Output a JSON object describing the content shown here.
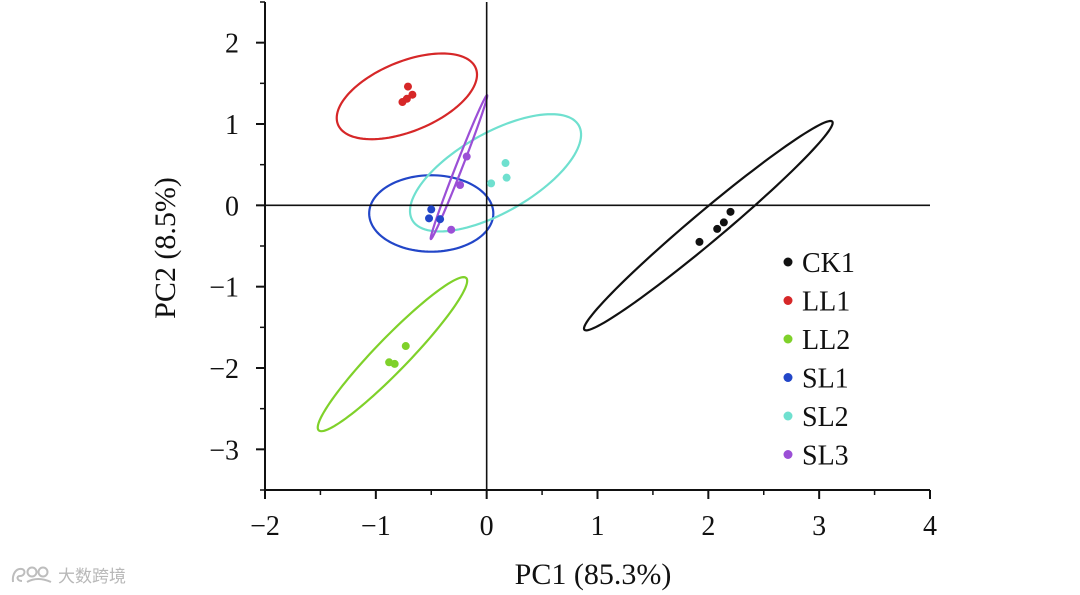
{
  "chart_data": {
    "type": "scatter",
    "xlabel": "PC1 (85.3%)",
    "ylabel": "PC2 (8.5%)",
    "xlim": [
      -2,
      4
    ],
    "ylim": [
      -3.5,
      2.5
    ],
    "xticks": [
      -2,
      -1,
      0,
      1,
      2,
      3,
      4
    ],
    "yticks": [
      -3,
      -2,
      -1,
      0,
      1,
      2
    ],
    "xtick_labels": [
      "−2",
      "−1",
      "0",
      "1",
      "2",
      "3",
      "4"
    ],
    "ytick_labels": [
      "−3",
      "−2",
      "−1",
      "0",
      "1",
      "2"
    ],
    "grid": false,
    "zero_lines": true,
    "legend_position": "bottom-right",
    "series": [
      {
        "name": "CK1",
        "color": "#111111",
        "points": [
          [
            1.92,
            -0.45
          ],
          [
            2.08,
            -0.29
          ],
          [
            2.14,
            -0.21
          ],
          [
            2.2,
            -0.08
          ]
        ],
        "ellipse": {
          "cx": 2.0,
          "cy": -0.25,
          "semi_major": 1.7,
          "semi_minor": 0.16,
          "angle_deg": 49
        }
      },
      {
        "name": "LL1",
        "color": "#d62728",
        "points": [
          [
            -0.76,
            1.27
          ],
          [
            -0.72,
            1.31
          ],
          [
            -0.67,
            1.36
          ],
          [
            -0.71,
            1.46
          ]
        ],
        "ellipse": {
          "cx": -0.72,
          "cy": 1.34,
          "semi_major": 0.72,
          "semi_minor": 0.4,
          "angle_deg": 35
        }
      },
      {
        "name": "LL2",
        "color": "#7fd12a",
        "points": [
          [
            -0.88,
            -1.93
          ],
          [
            -0.83,
            -1.95
          ],
          [
            -0.73,
            -1.73
          ]
        ],
        "ellipse": {
          "cx": -0.85,
          "cy": -1.83,
          "semi_major": 1.15,
          "semi_minor": 0.17,
          "angle_deg": 55
        }
      },
      {
        "name": "SL1",
        "color": "#2246c8",
        "points": [
          [
            -0.52,
            -0.16
          ],
          [
            -0.5,
            -0.05
          ],
          [
            -0.42,
            -0.17
          ]
        ],
        "ellipse": {
          "cx": -0.5,
          "cy": -0.1,
          "semi_major": 0.56,
          "semi_minor": 0.47,
          "angle_deg": 0
        }
      },
      {
        "name": "SL2",
        "color": "#6fe0cf",
        "points": [
          [
            0.04,
            0.27
          ],
          [
            0.17,
            0.52
          ],
          [
            0.18,
            0.34
          ]
        ],
        "ellipse": {
          "cx": 0.08,
          "cy": 0.4,
          "semi_major": 0.96,
          "semi_minor": 0.44,
          "angle_deg": 42
        }
      },
      {
        "name": "SL3",
        "color": "#9b4fd6",
        "points": [
          [
            -0.32,
            -0.3
          ],
          [
            -0.24,
            0.25
          ],
          [
            -0.18,
            0.6
          ]
        ],
        "ellipse": {
          "cx": -0.25,
          "cy": 0.47,
          "semi_major": 0.92,
          "semi_minor": 0.03,
          "angle_deg": 74
        }
      }
    ]
  },
  "watermark": {
    "text": "大数跨境"
  }
}
